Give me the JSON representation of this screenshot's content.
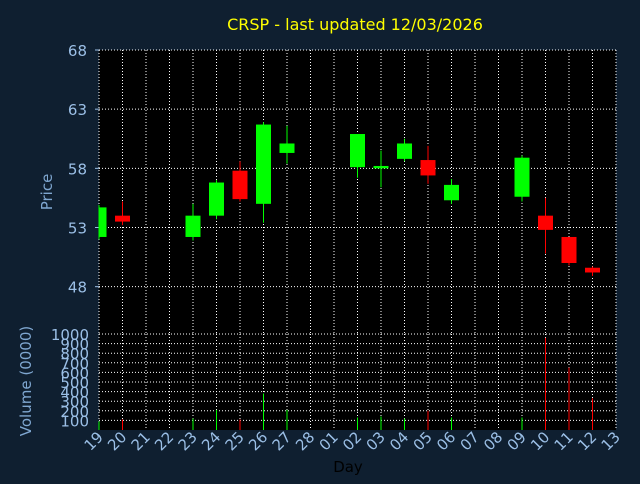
{
  "colors": {
    "background": "#0f1f30",
    "title": "#ffff00",
    "axis_text": "#7fa7d1",
    "tick_text": "#9bbfe6",
    "plot_bg": "#000000",
    "grid": "#ffffff",
    "up": "#00ff00",
    "down": "#ff0000",
    "day_label": "#000000"
  },
  "chart_data": [
    {
      "type": "candlestick",
      "title": "CRSP - last updated 12/03/2026",
      "ylabel": "Price",
      "ylim": [
        44,
        68
      ],
      "yticks": [
        48,
        53,
        58,
        63,
        68
      ],
      "grid": true,
      "x": [
        "19",
        "20",
        "21",
        "22",
        "23",
        "24",
        "25",
        "26",
        "27",
        "28",
        "01",
        "02",
        "03",
        "04",
        "05",
        "06",
        "07",
        "08",
        "09",
        "10",
        "11",
        "12",
        "13"
      ],
      "candles": [
        {
          "x": "19",
          "open": 52.2,
          "high": 54.9,
          "low": 52.0,
          "close": 54.7
        },
        {
          "x": "20",
          "open": 54.0,
          "high": 55.2,
          "low": 53.2,
          "close": 53.5
        },
        {
          "x": "23",
          "open": 52.2,
          "high": 55.0,
          "low": 51.9,
          "close": 54.0
        },
        {
          "x": "24",
          "open": 54.0,
          "high": 57.0,
          "low": 53.7,
          "close": 56.8
        },
        {
          "x": "25",
          "open": 57.8,
          "high": 58.6,
          "low": 55.2,
          "close": 55.4
        },
        {
          "x": "26",
          "open": 55.0,
          "high": 61.9,
          "low": 53.4,
          "close": 61.7
        },
        {
          "x": "27",
          "open": 59.3,
          "high": 61.6,
          "low": 58.4,
          "close": 60.1
        },
        {
          "x": "02",
          "open": 58.1,
          "high": 60.9,
          "low": 57.2,
          "close": 60.9
        },
        {
          "x": "03",
          "open": 58.0,
          "high": 59.5,
          "low": 56.4,
          "close": 58.2
        },
        {
          "x": "04",
          "open": 58.8,
          "high": 60.5,
          "low": 58.6,
          "close": 60.1
        },
        {
          "x": "05",
          "open": 58.7,
          "high": 59.9,
          "low": 56.7,
          "close": 57.4
        },
        {
          "x": "06",
          "open": 55.3,
          "high": 57.1,
          "low": 55.0,
          "close": 56.6
        },
        {
          "x": "09",
          "open": 55.6,
          "high": 59.1,
          "low": 55.2,
          "close": 58.9
        },
        {
          "x": "10",
          "open": 54.0,
          "high": 55.5,
          "low": 50.8,
          "close": 52.8
        },
        {
          "x": "11",
          "open": 52.2,
          "high": 52.2,
          "low": 49.8,
          "close": 50.0
        },
        {
          "x": "12",
          "open": 49.6,
          "high": 49.7,
          "low": 48.9,
          "close": 49.2
        }
      ]
    },
    {
      "type": "bar",
      "ylabel": "Volume (0000)",
      "xlabel": "Day",
      "ylim": [
        0,
        1000
      ],
      "yticks": [
        100,
        200,
        300,
        400,
        500,
        600,
        700,
        800,
        900,
        1000
      ],
      "grid": true,
      "x": [
        "19",
        "20",
        "21",
        "22",
        "23",
        "24",
        "25",
        "26",
        "27",
        "28",
        "01",
        "02",
        "03",
        "04",
        "05",
        "06",
        "07",
        "08",
        "09",
        "10",
        "11",
        "12",
        "13"
      ],
      "bars": [
        {
          "x": "19",
          "value": 90,
          "direction": "up"
        },
        {
          "x": "20",
          "value": 110,
          "direction": "down"
        },
        {
          "x": "23",
          "value": 120,
          "direction": "up"
        },
        {
          "x": "24",
          "value": 210,
          "direction": "up"
        },
        {
          "x": "25",
          "value": 110,
          "direction": "down"
        },
        {
          "x": "26",
          "value": 380,
          "direction": "up"
        },
        {
          "x": "27",
          "value": 210,
          "direction": "up"
        },
        {
          "x": "02",
          "value": 130,
          "direction": "up"
        },
        {
          "x": "03",
          "value": 140,
          "direction": "up"
        },
        {
          "x": "04",
          "value": 120,
          "direction": "up"
        },
        {
          "x": "05",
          "value": 200,
          "direction": "down"
        },
        {
          "x": "06",
          "value": 130,
          "direction": "up"
        },
        {
          "x": "09",
          "value": 130,
          "direction": "up"
        },
        {
          "x": "10",
          "value": 960,
          "direction": "down"
        },
        {
          "x": "11",
          "value": 650,
          "direction": "down"
        },
        {
          "x": "12",
          "value": 330,
          "direction": "down"
        }
      ]
    }
  ]
}
